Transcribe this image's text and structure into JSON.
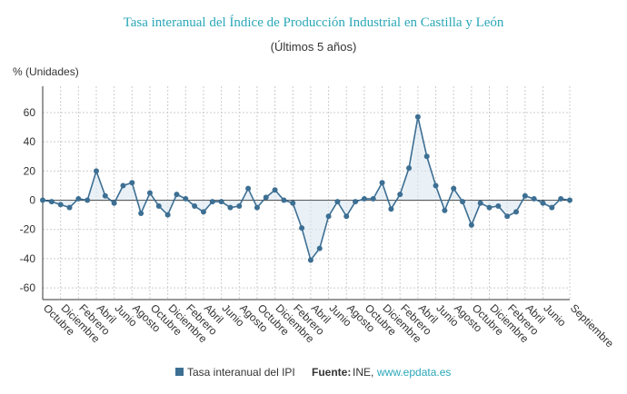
{
  "chart_data": {
    "type": "line",
    "title": "Tasa interanual del Índice de Producción Industrial en Castilla y León",
    "subtitle": "(Últimos 5 años)",
    "y_label": "% (Unidades)",
    "categories": [
      "Octubre",
      null,
      "Diciembre",
      null,
      "Febrero",
      null,
      "Abril",
      null,
      "Junio",
      null,
      "Agosto",
      null,
      "Octubre",
      null,
      "Diciembre",
      null,
      "Febrero",
      null,
      "Abril",
      null,
      "Junio",
      null,
      "Agosto",
      null,
      "Octubre",
      null,
      "Diciembre",
      null,
      "Febrero",
      null,
      "Abril",
      null,
      "Junio",
      null,
      "Agosto",
      null,
      "Octubre",
      null,
      "Diciembre",
      null,
      "Febrero",
      null,
      "Abril",
      null,
      "Junio",
      null,
      "Agosto",
      null,
      "Octubre",
      null,
      "Diciembre",
      null,
      "Febrero",
      null,
      "Abril",
      null,
      "Junio",
      null,
      null,
      "Septiembre"
    ],
    "series": [
      {
        "name": "Tasa interanual del IPI",
        "color": "#3d6f93",
        "values": [
          0,
          -1,
          -3,
          -5,
          1,
          0,
          20,
          3,
          -2,
          10,
          12,
          -9,
          5,
          -4,
          -10,
          4,
          1,
          -4,
          -8,
          -1,
          -1,
          -5,
          -4,
          8,
          -5,
          2,
          7,
          0,
          -2,
          -19,
          -41,
          -33,
          -11,
          -1,
          -11,
          -1,
          1,
          1,
          12,
          -6,
          4,
          22,
          57,
          30,
          10,
          -7,
          8,
          -1,
          -17,
          -2,
          -5,
          -4,
          -11,
          -8,
          3,
          1,
          -2,
          -5,
          1,
          0
        ]
      }
    ],
    "ylim": [
      -68,
      78
    ],
    "yticks": [
      -60,
      -40,
      -20,
      0,
      20,
      40,
      60
    ],
    "grid": true,
    "source_label": "Fuente:",
    "source": "INE,",
    "source_link": "www.epdata.es"
  }
}
